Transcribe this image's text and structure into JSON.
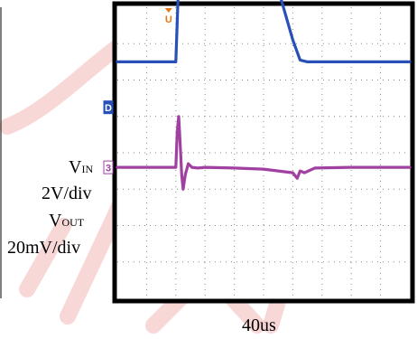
{
  "chart_data": {
    "type": "line",
    "title": "",
    "xlabel": "40us",
    "x_unit": "us",
    "x_range": [
      0,
      400
    ],
    "grid": true,
    "grid_divisions": {
      "x": 10,
      "y": 8
    },
    "series": [
      {
        "name": "VIN",
        "label_main": "V",
        "label_sub": "IN",
        "scale_text": "2V/div",
        "channel_marker": "D",
        "color": "#2850b8",
        "y_unit": "div",
        "x": [
          0,
          80,
          83,
          86,
          90,
          95,
          100,
          110,
          140,
          170,
          200,
          212,
          220,
          230,
          240,
          250,
          260,
          400
        ],
        "y": [
          2.5,
          2.5,
          4.2,
          4.9,
          5.18,
          5.0,
          4.95,
          4.92,
          4.9,
          4.88,
          4.85,
          4.8,
          4.5,
          3.8,
          3.1,
          2.55,
          2.5,
          2.5
        ]
      },
      {
        "name": "VOUT",
        "label_main": "V",
        "label_sub": "OUT",
        "scale_text": "20mV/div",
        "channel_marker": "3",
        "color": "#a040a0",
        "y_unit": "div",
        "x": [
          0,
          80,
          82,
          84,
          86,
          88,
          90,
          93,
          97,
          102,
          110,
          120,
          160,
          200,
          240,
          246,
          250,
          256,
          270,
          320,
          400
        ],
        "y": [
          -0.4,
          -0.4,
          0.6,
          1.0,
          0.2,
          -0.6,
          -1.0,
          -0.6,
          -0.3,
          -0.4,
          -0.42,
          -0.4,
          -0.42,
          -0.45,
          -0.55,
          -0.7,
          -0.5,
          -0.55,
          -0.42,
          -0.4,
          -0.4
        ]
      }
    ],
    "trigger_marker": "U",
    "trigger_color": "#e07818"
  },
  "watermark": "DEMO"
}
